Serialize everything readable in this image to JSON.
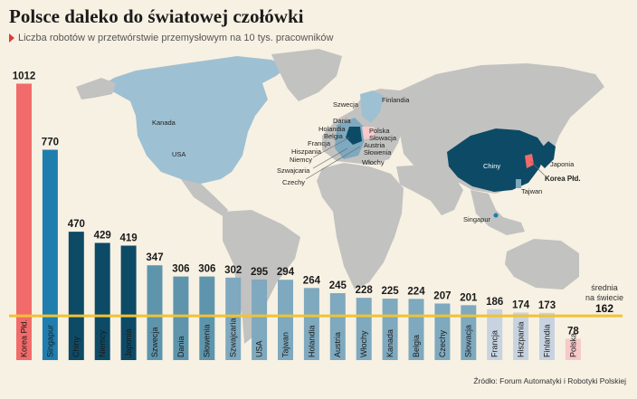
{
  "header": {
    "title": "Polsce daleko do światowej czołówki",
    "subtitle": "Liczba robotów w przetwórstwie przemysłowym na 10 tys. pracowników"
  },
  "source": "Źródło: Forum Automatyki i Robotyki Polskiej",
  "colors": {
    "background": "#f7f1e3",
    "korea": "#f26b6b",
    "poland": "#f7c9c9",
    "asia_dark": "#0d4a66",
    "asia_bright": "#1f7eae",
    "europe_mid": "#5e95ad",
    "western": "#7ea9bf",
    "light": "#c7d3e0",
    "average_line": "#f2c22e",
    "land_grey": "#c2c2c0",
    "land_highlight": "#9ec0d3"
  },
  "map": {
    "labels": {
      "kanada": "Kanada",
      "usa": "USA",
      "szwecja": "Szwecja",
      "finlandia": "Finlandia",
      "dania": "Dania",
      "holandia": "Holandia",
      "belgia": "Belgia",
      "francja": "Francja",
      "hiszpania": "Hiszpania",
      "niemcy": "Niemcy",
      "szwajcaria": "Szwajcaria",
      "czechy": "Czechy",
      "polska": "Polska",
      "slowacja": "Słowacja",
      "austria": "Austria",
      "slowenia": "Słowenia",
      "wlochy": "Włochy",
      "chiny": "Chiny",
      "japonia": "Japonia",
      "korea": "Korea Płd.",
      "tajwan": "Tajwan",
      "singapur": "Singapur"
    }
  },
  "chart_data": {
    "type": "bar",
    "title": "Polsce daleko do światowej czołówki",
    "subtitle": "Liczba robotów w przetwórstwie przemysłowym na 10 tys. pracowników",
    "categories": [
      "Korea Płd.",
      "Singapur",
      "Chiny",
      "Niemcy",
      "Japonia",
      "Szwecja",
      "Dania",
      "Słowenia",
      "Szwajcaria",
      "USA",
      "Tajwan",
      "Holandia",
      "Austria",
      "Włochy",
      "Kanada",
      "Belgia",
      "Czechy",
      "Słowacja",
      "Francja",
      "Hiszpania",
      "Finlandia",
      "Polska"
    ],
    "values": [
      1012,
      770,
      470,
      429,
      419,
      347,
      306,
      306,
      302,
      295,
      294,
      264,
      245,
      228,
      225,
      224,
      207,
      201,
      186,
      174,
      173,
      78
    ],
    "bar_colors": [
      "#f26b6b",
      "#1f7eae",
      "#0d4a66",
      "#0d4a66",
      "#0d4a66",
      "#5e95ad",
      "#5e95ad",
      "#5e95ad",
      "#7ea9bf",
      "#7ea9bf",
      "#7ea9bf",
      "#7ea9bf",
      "#7ea9bf",
      "#7ea9bf",
      "#7ea9bf",
      "#7ea9bf",
      "#7ea9bf",
      "#7ea9bf",
      "#c7d3e0",
      "#c7d3e0",
      "#c7d3e0",
      "#f7c9c9"
    ],
    "ylim": [
      0,
      1040
    ],
    "reference_line": {
      "label_line1": "średnia",
      "label_line2": "na świecie",
      "value": 162
    },
    "xlabel": "",
    "ylabel": "",
    "grid": false,
    "legend": "none"
  }
}
